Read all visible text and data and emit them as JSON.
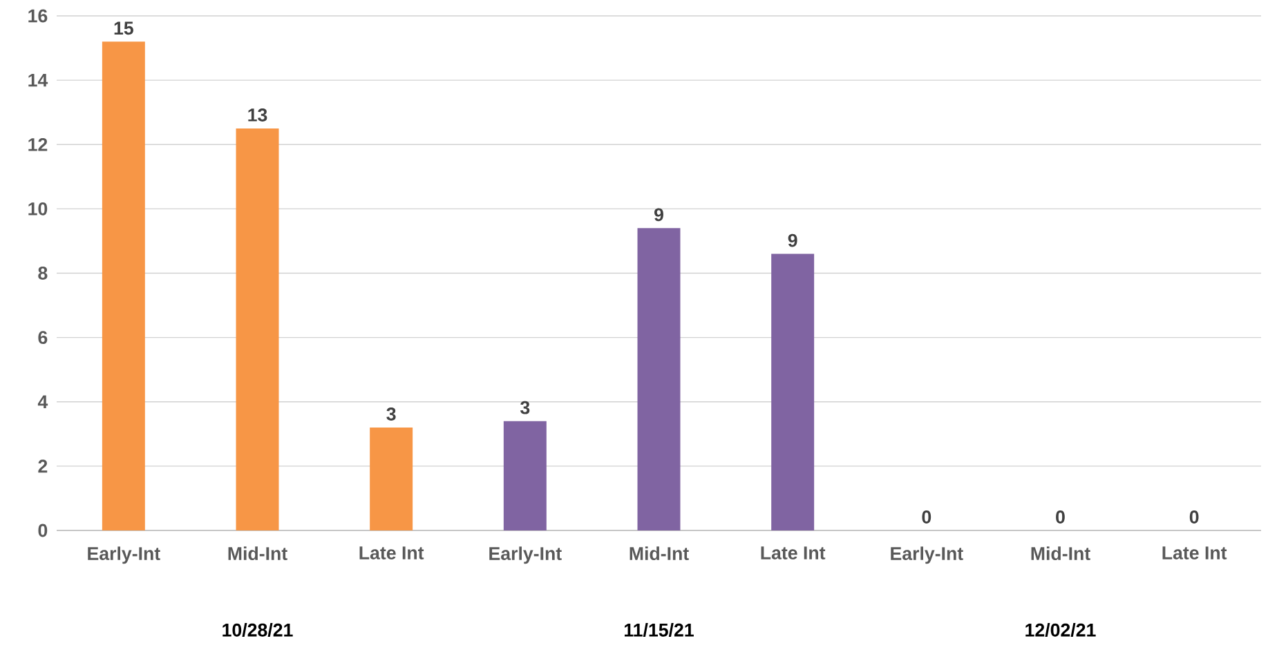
{
  "chart_data": {
    "type": "bar",
    "categories": [
      "Early-Int",
      "Mid-Int",
      "Late Int",
      "Early-Int",
      "Mid-Int",
      "Late Int",
      "Early-Int",
      "Mid-Int",
      "Late Int"
    ],
    "values": [
      15.2,
      12.5,
      3.2,
      3.4,
      9.4,
      8.6,
      0,
      0,
      0
    ],
    "colors": [
      "#f79646",
      "#f79646",
      "#f79646",
      "#8064a2",
      "#8064a2",
      "#8064a2",
      "#8064a2",
      "#8064a2",
      "#8064a2"
    ],
    "value_labels": [
      "15",
      "13",
      "3",
      "3",
      "9",
      "9",
      "0",
      "0",
      "0"
    ],
    "ylim": [
      0,
      16
    ],
    "yticks": [
      0,
      2,
      4,
      6,
      8,
      10,
      12,
      14,
      16
    ],
    "grid": "y",
    "annotations": [
      "10/28/21",
      "11/15/21",
      "12/02/21"
    ]
  }
}
